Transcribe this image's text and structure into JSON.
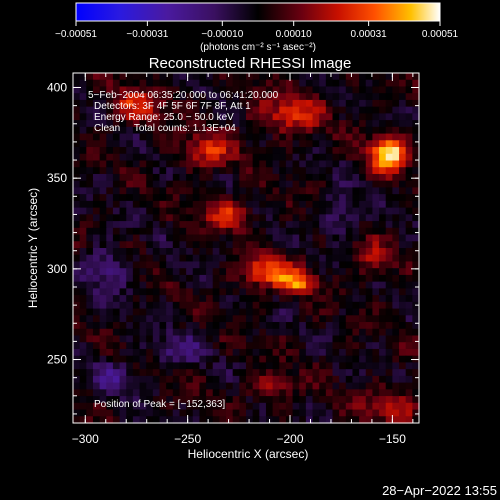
{
  "chart_data": {
    "type": "heatmap",
    "title": "Reconstructed RHESSI Image",
    "xlabel": "Heliocentric X (arcsec)",
    "ylabel": "Heliocentric Y (arcsec)",
    "xlim": [
      -306,
      -137
    ],
    "ylim": [
      215,
      408
    ],
    "x_ticks": [
      {
        "value": -300,
        "label": "−300"
      },
      {
        "value": -250,
        "label": "−250"
      },
      {
        "value": -200,
        "label": "−200"
      },
      {
        "value": -150,
        "label": "−150"
      }
    ],
    "y_ticks": [
      {
        "value": 250,
        "label": "250"
      },
      {
        "value": 300,
        "label": "300"
      },
      {
        "value": 350,
        "label": "350"
      },
      {
        "value": 400,
        "label": "400"
      }
    ],
    "colorbar": {
      "range": [
        -0.00051,
        0.00051
      ],
      "ticks": [
        {
          "value": -0.00051,
          "label": "−0.00051"
        },
        {
          "value": -0.00031,
          "label": "−0.00031"
        },
        {
          "value": -0.0001,
          "label": "−0.00010"
        },
        {
          "value": 0.0001,
          "label": "0.00010"
        },
        {
          "value": 0.00031,
          "label": "0.00031"
        },
        {
          "value": 0.00051,
          "label": "0.00051"
        }
      ],
      "unit_label": "(photons cm⁻² s⁻¹ asec⁻²)"
    },
    "info_lines": [
      "5−Feb−2004 06:35:20.000 to 06:41:20.000",
      "Detectors: 3F 4F 5F 6F 7F 8F, Att 1",
      "Energy Range: 25.0 − 50.0 keV",
      "Clean     Total counts: 1.13E+04"
    ],
    "peak_label": "Position of Peak = [−152,363]",
    "peak": {
      "x": -152,
      "y": 363
    },
    "sources": [
      {
        "x": -152,
        "y": 363,
        "sx": 6,
        "sy": 7,
        "amp": 1.0
      },
      {
        "x": -210,
        "y": 298,
        "sx": 10,
        "sy": 6,
        "amp": 0.62
      },
      {
        "x": -195,
        "y": 292,
        "sx": 6,
        "sy": 4,
        "amp": 0.55
      },
      {
        "x": -230,
        "y": 330,
        "sx": 8,
        "sy": 6,
        "amp": 0.5
      },
      {
        "x": -240,
        "y": 365,
        "sx": 9,
        "sy": 7,
        "amp": 0.45
      },
      {
        "x": -275,
        "y": 390,
        "sx": 10,
        "sy": 7,
        "amp": 0.42
      },
      {
        "x": -200,
        "y": 385,
        "sx": 12,
        "sy": 8,
        "amp": 0.45
      },
      {
        "x": -150,
        "y": 225,
        "sx": 10,
        "sy": 6,
        "amp": 0.42
      },
      {
        "x": -210,
        "y": 235,
        "sx": 8,
        "sy": 5,
        "amp": 0.35
      },
      {
        "x": -160,
        "y": 305,
        "sx": 6,
        "sy": 8,
        "amp": 0.3
      },
      {
        "x": -285,
        "y": 240,
        "sx": 7,
        "sy": 6,
        "amp": -0.35
      },
      {
        "x": -290,
        "y": 300,
        "sx": 8,
        "sy": 8,
        "amp": -0.35
      },
      {
        "x": -175,
        "y": 330,
        "sx": 7,
        "sy": 7,
        "amp": -0.3
      },
      {
        "x": -255,
        "y": 255,
        "sx": 8,
        "sy": 6,
        "amp": -0.3
      }
    ]
  },
  "timestamp": "28−Apr−2022 13:55"
}
